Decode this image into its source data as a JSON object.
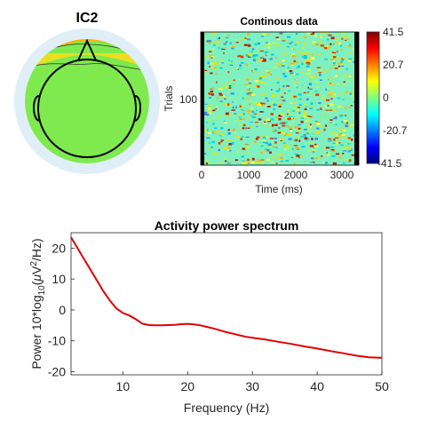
{
  "topomap": {
    "title": "IC2",
    "colors": {
      "rim": "#e0eef8",
      "fill": "#7fea4e",
      "hot": "#d62800",
      "warm": "#ffb000",
      "head": "#000000"
    }
  },
  "erpimage": {
    "title": "Continous data",
    "ylabel": "Trials",
    "xlabel": "Time (ms)",
    "xticks": [
      "0",
      "1000",
      "2000",
      "3000"
    ],
    "yticks": [
      "100"
    ],
    "colorbar_ticks": [
      "41.5",
      "20.7",
      "0",
      "-20.7",
      "-41.5"
    ]
  },
  "chart_data": {
    "type": "line",
    "title": "Activity power spectrum",
    "xlabel": "Frequency (Hz)",
    "ylabel": "Power 10*log10(μV²/Hz)",
    "xlim": [
      2,
      50
    ],
    "ylim": [
      -21,
      25
    ],
    "xticks": [
      "10",
      "20",
      "30",
      "40",
      "50"
    ],
    "yticks": [
      "20",
      "10",
      "0",
      "-10",
      "-20"
    ],
    "series": [
      {
        "color": "#e00000",
        "x": [
          2,
          3,
          4,
          5,
          6,
          7,
          8,
          9,
          10,
          11,
          12,
          13,
          14,
          15,
          16,
          17,
          18,
          19,
          20,
          21,
          22,
          23,
          24,
          25,
          26,
          27,
          28,
          29,
          30,
          32,
          34,
          36,
          38,
          40,
          42,
          44,
          46,
          48,
          50
        ],
        "y": [
          23.5,
          20,
          16.5,
          13,
          9.5,
          6,
          3,
          0.5,
          -1,
          -1.8,
          -3,
          -4.4,
          -4.9,
          -5,
          -5,
          -4.9,
          -4.8,
          -4.6,
          -4.5,
          -4.7,
          -5,
          -5.5,
          -6,
          -6.6,
          -7.2,
          -7.7,
          -8.2,
          -8.7,
          -9,
          -9.6,
          -10.3,
          -11,
          -11.8,
          -12.5,
          -13.3,
          -14,
          -14.8,
          -15.3,
          -15.5
        ]
      }
    ]
  }
}
